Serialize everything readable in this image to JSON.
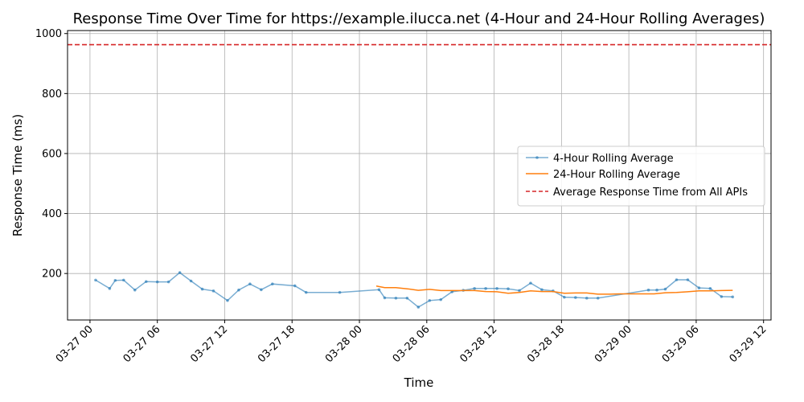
{
  "chart_data": {
    "type": "line",
    "title": "Response Time Over Time for https://example.ilucca.net (4-Hour and 24-Hour Rolling Averages)",
    "xlabel": "Time",
    "ylabel": "Response Time (ms)",
    "xlim": [
      "03-26 22:00",
      "03-29 12:40"
    ],
    "ylim": [
      45,
      1010
    ],
    "x_ticks": [
      {
        "t": "03-27 00:00",
        "label": "03-27 00"
      },
      {
        "t": "03-27 06:00",
        "label": "03-27 06"
      },
      {
        "t": "03-27 12:00",
        "label": "03-27 12"
      },
      {
        "t": "03-27 18:00",
        "label": "03-27 18"
      },
      {
        "t": "03-28 00:00",
        "label": "03-28 00"
      },
      {
        "t": "03-28 06:00",
        "label": "03-28 06"
      },
      {
        "t": "03-28 12:00",
        "label": "03-28 12"
      },
      {
        "t": "03-28 18:00",
        "label": "03-28 18"
      },
      {
        "t": "03-29 00:00",
        "label": "03-29 00"
      },
      {
        "t": "03-29 06:00",
        "label": "03-29 06"
      },
      {
        "t": "03-29 12:00",
        "label": "03-29 12"
      }
    ],
    "y_ticks": [
      200,
      400,
      600,
      800,
      1000
    ],
    "grid": true,
    "legend_position": "center-right",
    "series": [
      {
        "name": "4-Hour Rolling Average",
        "color": "#1f77b4",
        "style": "line-with-markers",
        "points": [
          [
            "03-27 00:30",
            178
          ],
          [
            "03-27 01:45",
            150
          ],
          [
            "03-27 02:15",
            177
          ],
          [
            "03-27 03:00",
            178
          ],
          [
            "03-27 04:00",
            145
          ],
          [
            "03-27 05:00",
            173
          ],
          [
            "03-27 06:00",
            172
          ],
          [
            "03-27 07:00",
            172
          ],
          [
            "03-27 08:00",
            203
          ],
          [
            "03-27 09:00",
            175
          ],
          [
            "03-27 10:00",
            148
          ],
          [
            "03-27 11:00",
            142
          ],
          [
            "03-27 12:15",
            110
          ],
          [
            "03-27 13:15",
            145
          ],
          [
            "03-27 14:15",
            165
          ],
          [
            "03-27 15:15",
            146
          ],
          [
            "03-27 16:15",
            165
          ],
          [
            "03-27 18:15",
            159
          ],
          [
            "03-27 19:15",
            137
          ],
          [
            "03-27 22:15",
            137
          ],
          [
            "03-28 01:45",
            146
          ],
          [
            "03-28 02:15",
            119
          ],
          [
            "03-28 03:15",
            118
          ],
          [
            "03-28 04:15",
            118
          ],
          [
            "03-28 05:15",
            88
          ],
          [
            "03-28 06:15",
            110
          ],
          [
            "03-28 07:15",
            113
          ],
          [
            "03-28 08:15",
            139
          ],
          [
            "03-28 09:15",
            144
          ],
          [
            "03-28 10:15",
            150
          ],
          [
            "03-28 11:15",
            150
          ],
          [
            "03-28 12:15",
            150
          ],
          [
            "03-28 13:15",
            149
          ],
          [
            "03-28 14:15",
            143
          ],
          [
            "03-28 15:15",
            168
          ],
          [
            "03-28 16:15",
            146
          ],
          [
            "03-28 17:15",
            142
          ],
          [
            "03-28 18:15",
            121
          ],
          [
            "03-28 19:15",
            120
          ],
          [
            "03-28 20:15",
            118
          ],
          [
            "03-28 21:15",
            118
          ],
          [
            "03-29 01:45",
            145
          ],
          [
            "03-29 02:30",
            145
          ],
          [
            "03-29 03:15",
            148
          ],
          [
            "03-29 04:15",
            179
          ],
          [
            "03-29 05:15",
            179
          ],
          [
            "03-29 06:15",
            152
          ],
          [
            "03-29 07:15",
            150
          ],
          [
            "03-29 08:15",
            123
          ],
          [
            "03-29 09:15",
            122
          ]
        ]
      },
      {
        "name": "24-Hour Rolling Average",
        "color": "#ff7f0e",
        "style": "line",
        "points": [
          [
            "03-28 01:30",
            158
          ],
          [
            "03-28 02:15",
            153
          ],
          [
            "03-28 03:15",
            153
          ],
          [
            "03-28 04:15",
            149
          ],
          [
            "03-28 05:15",
            144
          ],
          [
            "03-28 06:15",
            147
          ],
          [
            "03-28 07:15",
            143
          ],
          [
            "03-28 08:15",
            143
          ],
          [
            "03-28 09:15",
            143
          ],
          [
            "03-28 10:15",
            143
          ],
          [
            "03-28 11:15",
            140
          ],
          [
            "03-28 12:15",
            139
          ],
          [
            "03-28 13:15",
            134
          ],
          [
            "03-28 14:15",
            137
          ],
          [
            "03-28 15:15",
            142
          ],
          [
            "03-28 16:15",
            140
          ],
          [
            "03-28 17:15",
            140
          ],
          [
            "03-28 18:15",
            134
          ],
          [
            "03-28 19:15",
            135
          ],
          [
            "03-28 20:15",
            135
          ],
          [
            "03-28 21:15",
            131
          ],
          [
            "03-28 22:15",
            131
          ],
          [
            "03-28 23:15",
            132
          ],
          [
            "03-29 00:15",
            132
          ],
          [
            "03-29 01:15",
            132
          ],
          [
            "03-29 02:15",
            132
          ],
          [
            "03-29 03:15",
            136
          ],
          [
            "03-29 04:15",
            137
          ],
          [
            "03-29 05:15",
            139
          ],
          [
            "03-29 06:15",
            142
          ],
          [
            "03-29 07:15",
            142
          ],
          [
            "03-29 08:15",
            143
          ],
          [
            "03-29 09:15",
            144
          ]
        ]
      },
      {
        "name": "Average Response Time from All APIs",
        "color": "#d62728",
        "style": "dashed-horizontal",
        "value": 963
      }
    ]
  }
}
